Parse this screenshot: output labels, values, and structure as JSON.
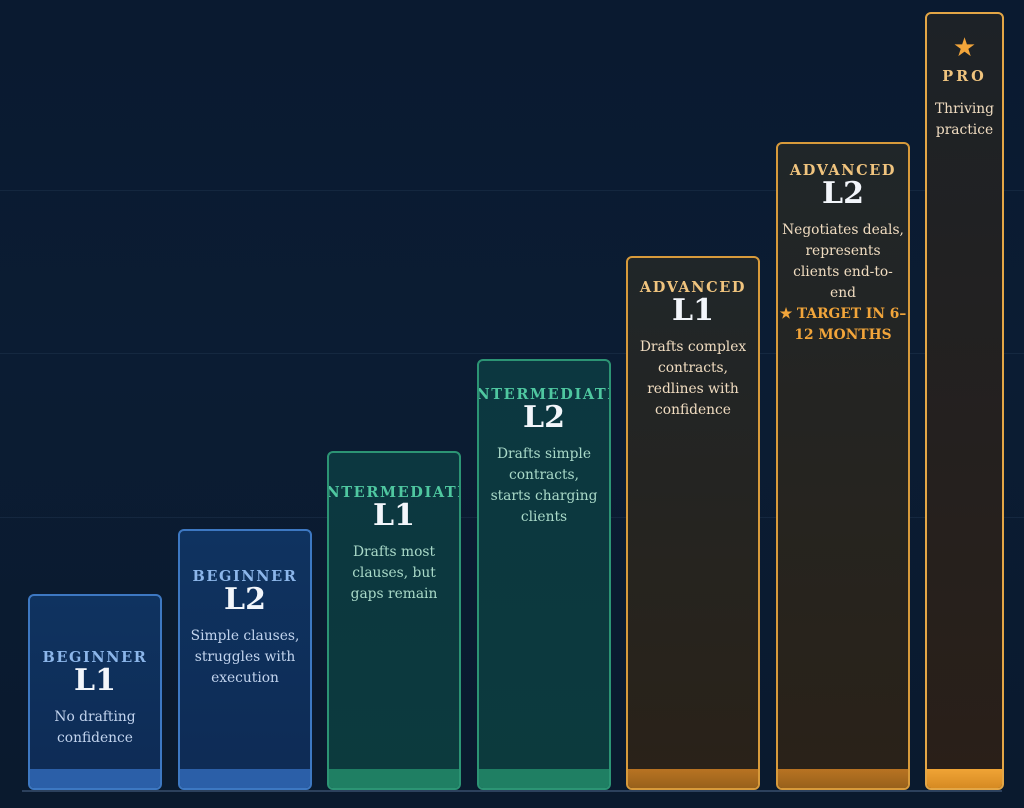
{
  "steps": [
    {
      "tier": "BEGINNER",
      "level": "L1",
      "description": "No drafting confidence"
    },
    {
      "tier": "BEGINNER",
      "level": "L2",
      "description": "Simple clauses, struggles with execution"
    },
    {
      "tier": "INTERMEDIATE",
      "level": "L1",
      "description": "Drafts most clauses, but gaps remain"
    },
    {
      "tier": "INTERMEDIATE",
      "level": "L2",
      "description": "Drafts simple contracts, starts charging clients"
    },
    {
      "tier": "ADVANCED",
      "level": "L1",
      "description": "Drafts complex contracts, redlines with confidence"
    },
    {
      "tier": "ADVANCED",
      "level": "L2",
      "description": "Negotiates deals, represents clients end-to-end",
      "target": "★ TARGET IN 6–12 MONTHS"
    },
    {
      "tier": "PRO",
      "icon": "star-icon",
      "star": "★",
      "description": "Thriving practice"
    }
  ],
  "colors": {
    "beginner": "#3d78c2",
    "intermediate": "#2c9474",
    "advanced": "#d79a3b",
    "pro": "#e3a646",
    "background": "#0a1a30"
  }
}
